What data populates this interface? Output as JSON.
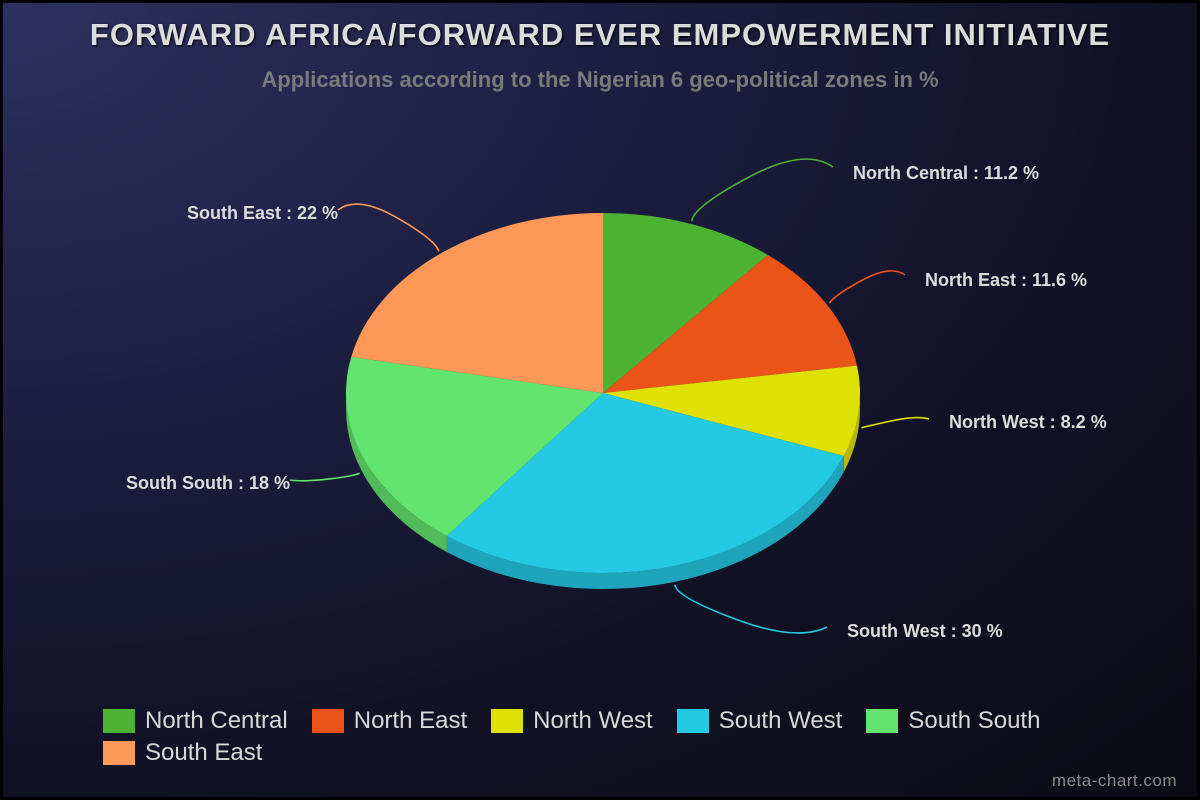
{
  "chart_data": {
    "type": "pie",
    "title": "FORWARD AFRICA/FORWARD EVER EMPOWERMENT INITIATIVE",
    "subtitle": "Applications according to the Nigerian 6 geo-political zones in %",
    "legend_position": "bottom",
    "slices": [
      {
        "name": "North Central",
        "value": 11.2,
        "label": "North Central : 11.2 %",
        "color": "#4cb332"
      },
      {
        "name": "North East",
        "value": 11.6,
        "label": "North East : 11.6 %",
        "color": "#ea5419"
      },
      {
        "name": "North West",
        "value": 8.2,
        "label": "North West : 8.2 %",
        "color": "#dfe003"
      },
      {
        "name": "South West",
        "value": 30,
        "label": "South West : 30 %",
        "color": "#24c9e4"
      },
      {
        "name": "South South",
        "value": 18,
        "label": "South South : 18 %",
        "color": "#63e46e"
      },
      {
        "name": "South East",
        "value": 22,
        "label": "South East : 22 %",
        "color": "#fe9858"
      }
    ]
  },
  "credit": "meta-chart.com"
}
